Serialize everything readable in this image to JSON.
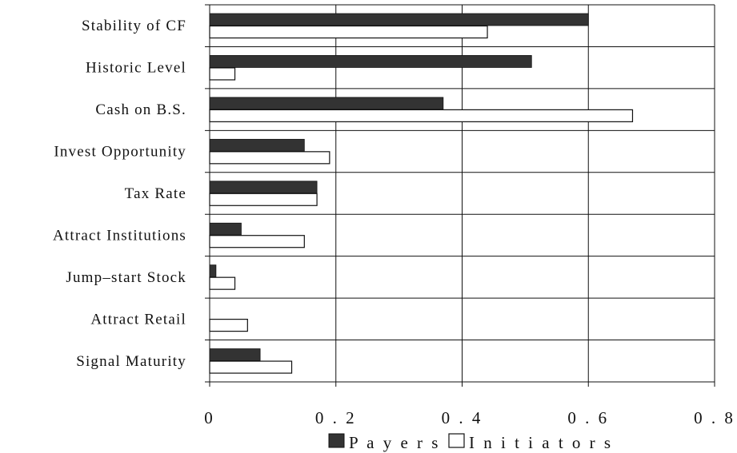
{
  "chart_data": {
    "type": "bar",
    "orientation": "horizontal",
    "categories": [
      "Stability of CF",
      "Historic Level",
      "Cash on B.S.",
      "Invest Opportunity",
      "Tax Rate",
      "Attract Institutions",
      "Jump–start Stock",
      "Attract Retail",
      "Signal Maturity"
    ],
    "series": [
      {
        "name": "Payers",
        "color": "#333333",
        "values": [
          0.6,
          0.51,
          0.37,
          0.15,
          0.17,
          0.05,
          0.01,
          0.0,
          0.08
        ]
      },
      {
        "name": "Initiators",
        "color": "#ffffff",
        "values": [
          0.44,
          0.04,
          0.67,
          0.19,
          0.17,
          0.15,
          0.04,
          0.06,
          0.13
        ]
      }
    ],
    "xlim": [
      0,
      0.8
    ],
    "xticks": [
      0,
      0.2,
      0.4,
      0.6,
      0.8
    ],
    "xtick_labels": [
      "0",
      "0 . 2",
      "0 . 4",
      "0 . 6",
      "0 . 8"
    ],
    "grid": "vertical and horizontal",
    "legend_position": "bottom"
  },
  "legend": {
    "payers_label": "P a y e r s",
    "initiators_label": "I n i t i a t o r s"
  }
}
